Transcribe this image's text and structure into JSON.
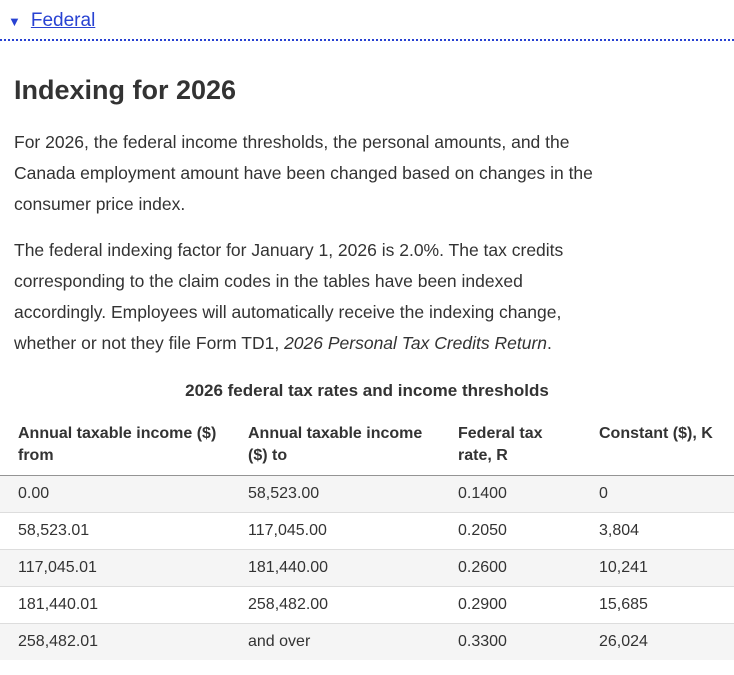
{
  "accordion": {
    "label": "Federal",
    "marker_icon": "▼",
    "state": "expanded"
  },
  "section": {
    "heading": "Indexing for 2026",
    "paragraph1_lines": [
      "For 2026, the federal income thresholds, the personal amounts, and the",
      "Canada employment amount have been changed based on changes in the",
      "consumer price index."
    ],
    "paragraph2_lines": [
      "The federal indexing factor for January 1, 2026 is 2.0%. The tax credits",
      "corresponding to the claim codes in the tables have been indexed",
      "accordingly. Employees will automatically receive the indexing change,"
    ],
    "paragraph2_last_prefix": "whether or not they file Form TD1, ",
    "paragraph2_italic": "2026 Personal Tax Credits Return",
    "paragraph2_suffix": "."
  },
  "table": {
    "caption": "2026 federal tax rates and income thresholds",
    "columns": [
      "Annual taxable income ($) from",
      "Annual taxable income ($) to",
      "Federal tax rate, R",
      "Constant ($), K"
    ],
    "rows": [
      [
        "0.00",
        "58,523.00",
        "0.1400",
        "0"
      ],
      [
        "58,523.01",
        "117,045.00",
        "0.2050",
        "3,804"
      ],
      [
        "117,045.01",
        "181,440.00",
        "0.2600",
        "10,241"
      ],
      [
        "181,440.01",
        "258,482.00",
        "0.2900",
        "15,685"
      ],
      [
        "258,482.01",
        "and over",
        "0.3300",
        "26,024"
      ]
    ]
  },
  "colors": {
    "link_blue": "#2842d2",
    "body_text": "#333333",
    "row_stripe": "#f5f5f5",
    "row_border": "#dddddd",
    "header_border": "#949494"
  }
}
